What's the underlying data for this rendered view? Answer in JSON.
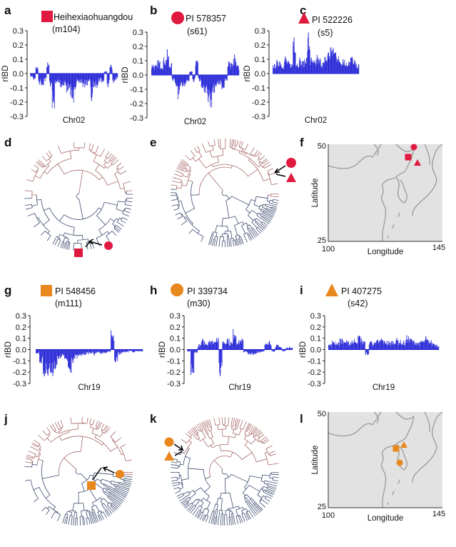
{
  "colors": {
    "red": "#e0193f",
    "orange": "#e8871e",
    "bars": "#1f1fd6",
    "tree_upper": "#a86a6a",
    "tree_lower": "#3c4a6e",
    "map_line": "#9a9a9a",
    "map_bg": "#e2e2e2"
  },
  "panels": {
    "a": "a",
    "b": "b",
    "c": "c",
    "d": "d",
    "e": "e",
    "f": "f",
    "g": "g",
    "h": "h",
    "i": "i",
    "j": "j",
    "k": "k",
    "l": "l"
  },
  "legends": {
    "a": {
      "marker": "square",
      "name": "Heihexiaohuangdou",
      "id": "(m104)"
    },
    "b": {
      "marker": "circle",
      "name": "PI 578357",
      "id": "(s61)"
    },
    "c": {
      "marker": "triangle",
      "name": "PI 522226",
      "id": "(s5)"
    },
    "g": {
      "marker": "square",
      "name": "PI 548456",
      "id": "(m111)"
    },
    "h": {
      "marker": "circle",
      "name": "PI 339734",
      "id": "(m30)"
    },
    "i": {
      "marker": "triangle",
      "name": "PI 407275",
      "id": "(s42)"
    }
  },
  "chart_data": [
    {
      "panel": "a",
      "type": "bar",
      "ylabel": "rIBD",
      "xlabel": "Chr02",
      "ylim": [
        -0.3,
        0.3
      ],
      "yticks": [
        "0.3",
        "0.2",
        "0.1",
        "0.0",
        "-0.1",
        "-0.2",
        "-0.3"
      ],
      "values": [
        -0.03,
        -0.05,
        0.06,
        -0.08,
        -0.1,
        -0.06,
        0.08,
        -0.12,
        -0.3,
        -0.1,
        -0.08,
        -0.12,
        -0.1,
        -0.15,
        -0.18,
        -0.25,
        -0.12,
        -0.1,
        -0.08,
        -0.12,
        -0.1,
        -0.08,
        -0.23,
        -0.12,
        -0.1,
        -0.06,
        -0.08,
        0.02,
        -0.1,
        0.07,
        -0.08,
        -0.05
      ]
    },
    {
      "panel": "b",
      "type": "bar",
      "ylabel": "rIBD",
      "xlabel": "Chr02",
      "ylim": [
        -0.3,
        0.3
      ],
      "yticks": [
        "0.3",
        "0.2",
        "0.1",
        "0.0",
        "-0.1",
        "-0.2",
        "-0.3"
      ],
      "values": [
        0.1,
        0.08,
        0.12,
        0.1,
        0.15,
        0.18,
        0.1,
        -0.05,
        -0.12,
        -0.2,
        -0.1,
        -0.08,
        -0.06,
        0.03,
        -0.05,
        0.12,
        -0.05,
        -0.12,
        -0.15,
        -0.2,
        -0.28,
        -0.15,
        -0.1,
        -0.08,
        -0.12,
        -0.06,
        0.12,
        0.1,
        0.15,
        0.08
      ]
    },
    {
      "panel": "c",
      "type": "bar",
      "ylabel": "rIBD",
      "xlabel": "Chr02",
      "ylim": [
        -0.3,
        0.3
      ],
      "yticks": [
        "0.3",
        "0.2",
        "0.1",
        "0.0",
        "-0.1",
        "-0.2",
        "-0.3"
      ],
      "values": [
        0.08,
        0.1,
        0.12,
        0.08,
        0.14,
        0.1,
        0.09,
        0.35,
        0.1,
        0.12,
        0.1,
        0.15,
        0.32,
        0.12,
        0.1,
        0.14,
        0.12,
        0.1,
        0.15,
        0.2,
        0.25,
        0.22,
        0.18,
        0.12,
        0.14,
        0.1,
        0.12,
        0.15,
        0.1,
        0.08
      ]
    },
    {
      "panel": "g",
      "type": "bar",
      "ylabel": "rIBD",
      "xlabel": "Chr19",
      "ylim": [
        -0.3,
        0.3
      ],
      "yticks": [
        "0.3",
        "0.2",
        "0.1",
        "0.0",
        "-0.1",
        "-0.2",
        "-0.3"
      ],
      "values": [
        -0.05,
        -0.15,
        -0.3,
        -0.25,
        -0.3,
        -0.2,
        -0.12,
        -0.08,
        -0.15,
        -0.25,
        -0.12,
        -0.1,
        -0.08,
        -0.06,
        -0.05,
        -0.04,
        -0.06,
        -0.03,
        -0.05,
        -0.04,
        -0.03,
        0.2,
        -0.15,
        -0.05,
        -0.03,
        -0.04,
        -0.02,
        -0.03,
        -0.02,
        -0.02
      ]
    },
    {
      "panel": "h",
      "type": "bar",
      "ylabel": "rIBD",
      "xlabel": "Chr19",
      "ylim": [
        -0.3,
        0.3
      ],
      "yticks": [
        "0.3",
        "0.2",
        "0.1",
        "0.0",
        "-0.1",
        "-0.2",
        "-0.3"
      ],
      "values": [
        -0.02,
        -0.28,
        -0.04,
        0.05,
        0.1,
        0.08,
        0.12,
        0.1,
        0.15,
        -0.25,
        0.1,
        0.12,
        0.08,
        0.22,
        0.1,
        0.12,
        -0.03,
        -0.05,
        -0.06,
        -0.05,
        -0.04,
        -0.03,
        0.06,
        0.08,
        -0.03,
        0.05,
        0.03,
        -0.02,
        0.02,
        0.03
      ]
    },
    {
      "panel": "i",
      "type": "bar",
      "ylabel": "rIBD",
      "xlabel": "Chr19",
      "ylim": [
        -0.3,
        0.3
      ],
      "yticks": [
        "0.3",
        "0.2",
        "0.1",
        "0.0",
        "-0.1",
        "-0.2",
        "-0.3"
      ],
      "values": [
        0.06,
        0.1,
        0.08,
        0.12,
        0.1,
        0.08,
        0.1,
        0.12,
        0.15,
        0.1,
        -0.06,
        0.1,
        0.08,
        0.1,
        0.12,
        0.1,
        0.08,
        0.1,
        0.12,
        0.1,
        0.08,
        0.15,
        0.12,
        0.1,
        0.08,
        0.1,
        0.12,
        0.1,
        0.08,
        0.06
      ]
    }
  ],
  "maps": {
    "f": {
      "ylabel": "Latitude",
      "xlabel": "Longitude",
      "lat_min": "25",
      "lat_max": "50",
      "lon_min": "100",
      "lon_max": "145",
      "color": "red"
    },
    "l": {
      "ylabel": "Latitude",
      "xlabel": "Longitude",
      "lat_min": "25",
      "lat_max": "50",
      "lon_min": "100",
      "lon_max": "145",
      "color": "orange"
    }
  }
}
